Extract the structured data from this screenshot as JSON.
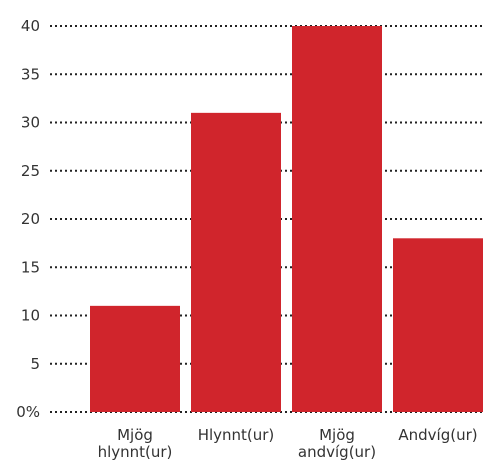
{
  "chart_data": {
    "type": "bar",
    "categories": [
      [
        "Mjög",
        "hlynnt(ur)"
      ],
      [
        "Hlynnt(ur)"
      ],
      [
        "Mjög",
        "andvíg(ur)"
      ],
      [
        "Andvíg(ur)"
      ]
    ],
    "values": [
      11,
      31,
      40,
      18
    ],
    "ylim": [
      0,
      40
    ],
    "yticks": [
      "0%",
      "5",
      "10",
      "15",
      "20",
      "25",
      "30",
      "35",
      "40"
    ],
    "grid": true,
    "bar_color": "#d0252c"
  }
}
